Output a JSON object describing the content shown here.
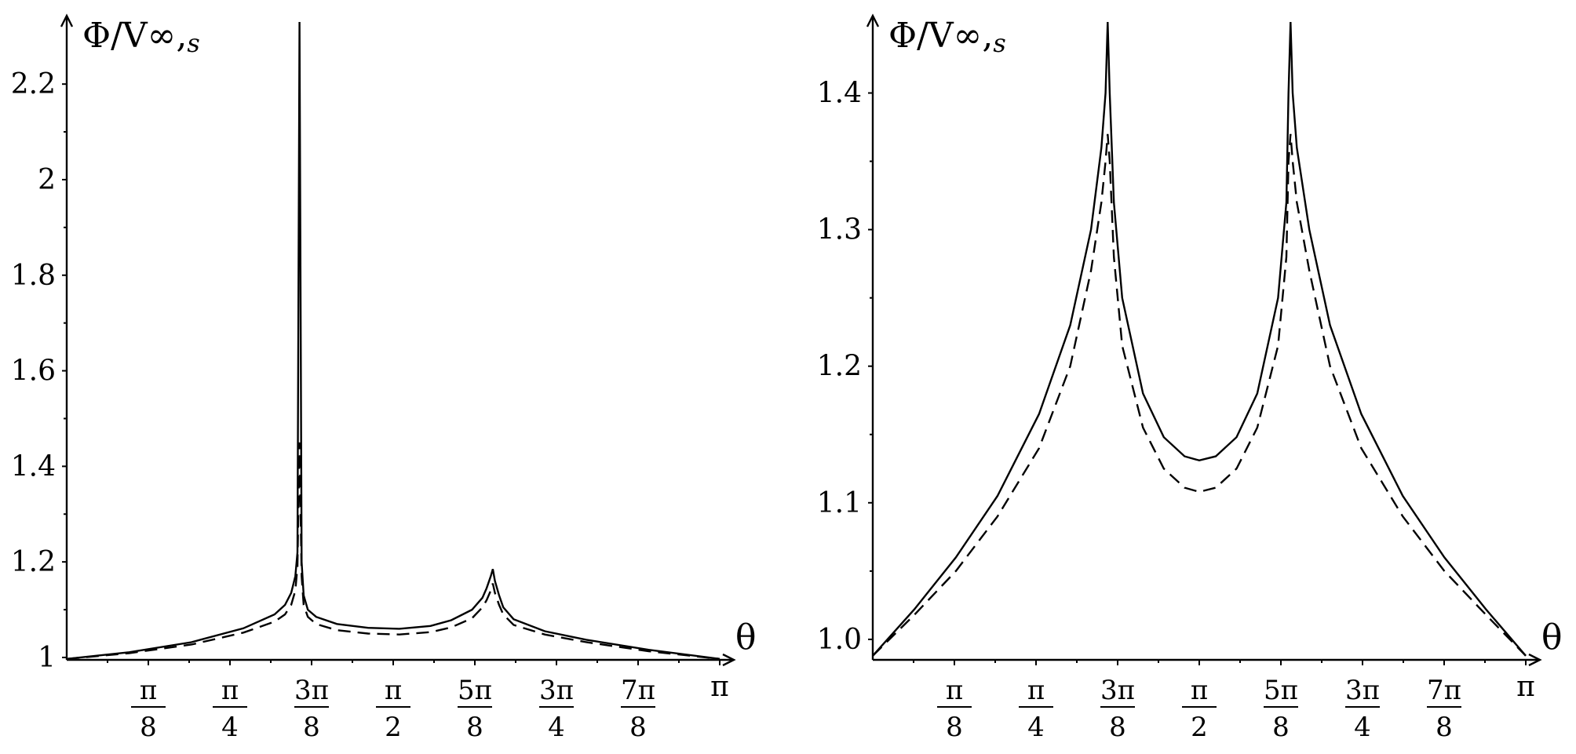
{
  "chart_data": [
    {
      "type": "line",
      "ylabel": "Φ/V∞,s",
      "xlabel": "θ",
      "xlim": [
        0,
        3.14159
      ],
      "ylim": [
        0.995,
        2.33
      ],
      "y_ticks": [
        {
          "value": 1.0,
          "label": "1"
        },
        {
          "value": 1.2,
          "label": "1.2"
        },
        {
          "value": 1.4,
          "label": "1.4"
        },
        {
          "value": 1.6,
          "label": "1.6"
        },
        {
          "value": 1.8,
          "label": "1.8"
        },
        {
          "value": 2.0,
          "label": "2"
        },
        {
          "value": 2.2,
          "label": "2.2"
        }
      ],
      "x_ticks": [
        {
          "value": 0.3927,
          "num": "π",
          "den": "8"
        },
        {
          "value": 0.7854,
          "num": "π",
          "den": "4"
        },
        {
          "value": 1.1781,
          "num": "3π",
          "den": "8"
        },
        {
          "value": 1.5708,
          "num": "π",
          "den": "2"
        },
        {
          "value": 1.9635,
          "num": "5π",
          "den": "8"
        },
        {
          "value": 2.3562,
          "num": "3π",
          "den": "4"
        },
        {
          "value": 2.7489,
          "num": "7π",
          "den": "8"
        },
        {
          "value": 3.14159,
          "label": "π"
        }
      ],
      "series": [
        {
          "style": "solid",
          "x": [
            0,
            0.3,
            0.6,
            0.85,
            1.0,
            1.05,
            1.08,
            1.1,
            1.11,
            1.12,
            1.13,
            1.14,
            1.16,
            1.2,
            1.3,
            1.45,
            1.6,
            1.75,
            1.85,
            1.95,
            2.0,
            2.02,
            2.04,
            2.05,
            2.06,
            2.08,
            2.1,
            2.15,
            2.3,
            2.5,
            2.8,
            3.1416
          ],
          "y": [
            0.997,
            1.011,
            1.032,
            1.061,
            1.09,
            1.11,
            1.135,
            1.17,
            1.22,
            2.33,
            1.2,
            1.13,
            1.1,
            1.085,
            1.07,
            1.062,
            1.06,
            1.066,
            1.078,
            1.1,
            1.125,
            1.145,
            1.17,
            1.185,
            1.16,
            1.13,
            1.105,
            1.08,
            1.055,
            1.037,
            1.016,
            0.997
          ]
        },
        {
          "style": "dashed",
          "x": [
            0,
            0.3,
            0.6,
            0.85,
            1.0,
            1.05,
            1.08,
            1.1,
            1.11,
            1.12,
            1.13,
            1.14,
            1.16,
            1.2,
            1.3,
            1.45,
            1.6,
            1.75,
            1.85,
            1.95,
            2.0,
            2.02,
            2.04,
            2.05,
            2.06,
            2.08,
            2.1,
            2.15,
            2.3,
            2.5,
            2.8,
            3.1416
          ],
          "y": [
            0.997,
            1.009,
            1.027,
            1.052,
            1.075,
            1.09,
            1.11,
            1.14,
            1.19,
            1.45,
            1.17,
            1.11,
            1.085,
            1.07,
            1.057,
            1.05,
            1.048,
            1.053,
            1.063,
            1.082,
            1.105,
            1.12,
            1.14,
            1.155,
            1.135,
            1.11,
            1.09,
            1.068,
            1.048,
            1.032,
            1.013,
            0.997
          ]
        }
      ]
    },
    {
      "type": "line",
      "ylabel": "Φ/V∞,s",
      "xlabel": "θ",
      "xlim": [
        0,
        3.14159
      ],
      "ylim": [
        0.985,
        1.452
      ],
      "y_ticks": [
        {
          "value": 1.0,
          "label": "1.0"
        },
        {
          "value": 1.1,
          "label": "1.1"
        },
        {
          "value": 1.2,
          "label": "1.2"
        },
        {
          "value": 1.3,
          "label": "1.3"
        },
        {
          "value": 1.4,
          "label": "1.4"
        }
      ],
      "x_ticks": [
        {
          "value": 0.3927,
          "num": "π",
          "den": "8"
        },
        {
          "value": 0.7854,
          "num": "π",
          "den": "4"
        },
        {
          "value": 1.1781,
          "num": "3π",
          "den": "8"
        },
        {
          "value": 1.5708,
          "num": "π",
          "den": "2"
        },
        {
          "value": 1.9635,
          "num": "5π",
          "den": "8"
        },
        {
          "value": 2.3562,
          "num": "3π",
          "den": "4"
        },
        {
          "value": 2.7489,
          "num": "7π",
          "den": "8"
        },
        {
          "value": 3.14159,
          "label": "π"
        }
      ],
      "series": [
        {
          "style": "solid",
          "x": [
            0,
            0.2,
            0.4,
            0.6,
            0.8,
            0.95,
            1.05,
            1.1,
            1.12,
            1.13,
            1.14,
            1.16,
            1.2,
            1.3,
            1.4,
            1.5,
            1.5708,
            1.65,
            1.75,
            1.85,
            1.95,
            1.99,
            2.0,
            2.01,
            2.02,
            2.04,
            2.1,
            2.2,
            2.35,
            2.55,
            2.75,
            2.95,
            3.1416
          ],
          "y": [
            0.988,
            1.022,
            1.06,
            1.105,
            1.165,
            1.23,
            1.3,
            1.36,
            1.4,
            1.452,
            1.4,
            1.32,
            1.25,
            1.18,
            1.148,
            1.134,
            1.131,
            1.134,
            1.148,
            1.18,
            1.25,
            1.32,
            1.4,
            1.452,
            1.4,
            1.36,
            1.3,
            1.23,
            1.165,
            1.105,
            1.06,
            1.022,
            0.988
          ]
        },
        {
          "style": "dashed",
          "x": [
            0,
            0.2,
            0.4,
            0.6,
            0.8,
            0.95,
            1.05,
            1.1,
            1.12,
            1.13,
            1.14,
            1.16,
            1.2,
            1.3,
            1.4,
            1.5,
            1.5708,
            1.65,
            1.75,
            1.85,
            1.95,
            1.99,
            2.0,
            2.01,
            2.02,
            2.04,
            2.1,
            2.2,
            2.35,
            2.55,
            2.75,
            2.95,
            3.1416
          ],
          "y": [
            0.988,
            1.018,
            1.05,
            1.09,
            1.14,
            1.2,
            1.27,
            1.32,
            1.35,
            1.37,
            1.35,
            1.28,
            1.215,
            1.155,
            1.125,
            1.111,
            1.108,
            1.111,
            1.125,
            1.155,
            1.215,
            1.28,
            1.35,
            1.37,
            1.35,
            1.32,
            1.27,
            1.2,
            1.14,
            1.09,
            1.05,
            1.018,
            0.988
          ]
        }
      ]
    }
  ]
}
